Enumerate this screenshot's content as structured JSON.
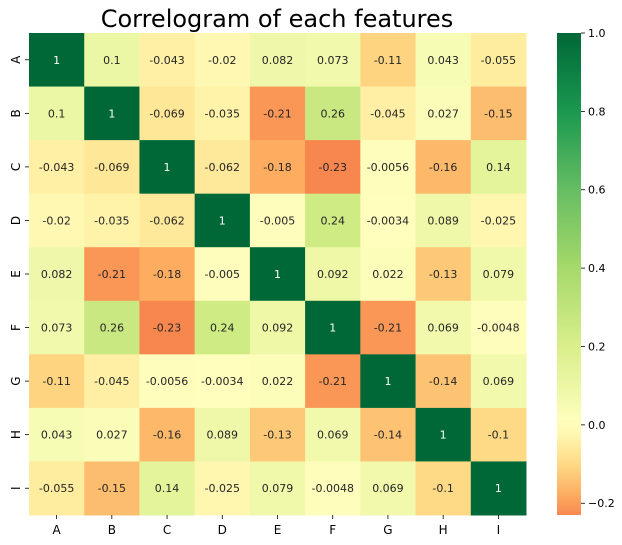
{
  "chart_data": {
    "type": "heatmap",
    "title": "Correlogram of each features",
    "xlabel": "",
    "ylabel": "",
    "x_categories": [
      "A",
      "B",
      "C",
      "D",
      "E",
      "F",
      "G",
      "H",
      "I"
    ],
    "y_categories": [
      "A",
      "B",
      "C",
      "D",
      "E",
      "F",
      "G",
      "H",
      "I"
    ],
    "values": [
      [
        1,
        0.1,
        -0.043,
        -0.02,
        0.082,
        0.073,
        -0.11,
        0.043,
        -0.055
      ],
      [
        0.1,
        1,
        -0.069,
        -0.035,
        -0.21,
        0.26,
        -0.045,
        0.027,
        -0.15
      ],
      [
        -0.043,
        -0.069,
        1,
        -0.062,
        -0.18,
        -0.23,
        -0.0056,
        -0.16,
        0.14
      ],
      [
        -0.02,
        -0.035,
        -0.062,
        1,
        -0.005,
        0.24,
        -0.0034,
        0.089,
        -0.025
      ],
      [
        0.082,
        -0.21,
        -0.18,
        -0.005,
        1,
        0.092,
        0.022,
        -0.13,
        0.079
      ],
      [
        0.073,
        0.26,
        -0.23,
        0.24,
        0.092,
        1,
        -0.21,
        0.069,
        -0.0048
      ],
      [
        -0.11,
        -0.045,
        -0.0056,
        -0.0034,
        0.022,
        -0.21,
        1,
        -0.14,
        0.069
      ],
      [
        0.043,
        0.027,
        -0.16,
        0.089,
        -0.13,
        0.069,
        -0.14,
        1,
        -0.1
      ],
      [
        -0.055,
        -0.15,
        0.14,
        -0.025,
        0.079,
        -0.0048,
        0.069,
        -0.1,
        1
      ]
    ],
    "value_labels": [
      [
        "1",
        "0.1",
        "-0.043",
        "-0.02",
        "0.082",
        "0.073",
        "-0.11",
        "0.043",
        "-0.055"
      ],
      [
        "0.1",
        "1",
        "-0.069",
        "-0.035",
        "-0.21",
        "0.26",
        "-0.045",
        "0.027",
        "-0.15"
      ],
      [
        "-0.043",
        "-0.069",
        "1",
        "-0.062",
        "-0.18",
        "-0.23",
        "-0.0056",
        "-0.16",
        "0.14"
      ],
      [
        "-0.02",
        "-0.035",
        "-0.062",
        "1",
        "-0.005",
        "0.24",
        "-0.0034",
        "0.089",
        "-0.025"
      ],
      [
        "0.082",
        "-0.21",
        "-0.18",
        "-0.005",
        "1",
        "0.092",
        "0.022",
        "-0.13",
        "0.079"
      ],
      [
        "0.073",
        "0.26",
        "-0.23",
        "0.24",
        "0.092",
        "1",
        "-0.21",
        "0.069",
        "-0.0048"
      ],
      [
        "-0.11",
        "-0.045",
        "-0.0056",
        "-0.0034",
        "0.022",
        "-0.21",
        "1",
        "-0.14",
        "0.069"
      ],
      [
        "0.043",
        "0.027",
        "-0.16",
        "0.089",
        "-0.13",
        "0.069",
        "-0.14",
        "1",
        "-0.1"
      ],
      [
        "-0.055",
        "-0.15",
        "0.14",
        "-0.025",
        "0.079",
        "-0.0048",
        "0.069",
        "-0.1",
        "1"
      ]
    ],
    "colormap": "RdYlGn",
    "colorbar": {
      "vmin": -0.23,
      "vmax": 1,
      "ticks": [
        -0.2,
        0.0,
        0.2,
        0.4,
        0.6,
        0.8,
        1.0
      ],
      "tick_labels": [
        "−0.2",
        "0.0",
        "0.2",
        "0.4",
        "0.6",
        "0.8",
        "1.0"
      ]
    },
    "grid": false,
    "legend": "colorbar-right"
  }
}
